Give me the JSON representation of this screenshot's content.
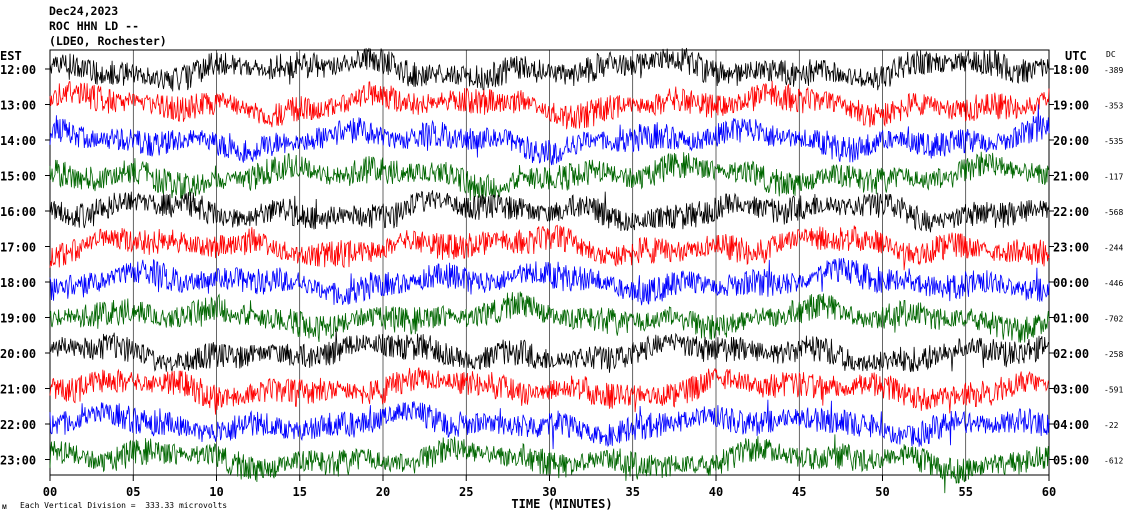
{
  "header": {
    "date": "Dec24,2023",
    "station": "ROC HHN LD --",
    "network": "(LDEO, Rochester)"
  },
  "left_zone_label": "EST",
  "right_zone_label": "UTC",
  "dc_label": "DC",
  "footer": {
    "xlabel": "TIME (MINUTES)",
    "scale_note": "Each Vertical Division =  333.33 microvolts",
    "mark": "ᴍ"
  },
  "colors": {
    "trace_cycle": [
      "#000000",
      "#ff0000",
      "#0000ff",
      "#006600"
    ],
    "grid": "#000000",
    "background": "#ffffff"
  },
  "chart_data": {
    "type": "line",
    "title": "",
    "xlabel": "TIME (MINUTES)",
    "ylabel": "",
    "xlim": [
      0,
      60
    ],
    "x_ticks": [
      "00",
      "05",
      "10",
      "15",
      "20",
      "25",
      "30",
      "35",
      "40",
      "45",
      "50",
      "55",
      "60"
    ],
    "grid": "vertical lines every 5 minutes",
    "rows": [
      {
        "est": "12:00",
        "utc": "18:00",
        "dc": "-389",
        "color": "#000000"
      },
      {
        "est": "13:00",
        "utc": "19:00",
        "dc": "-353",
        "color": "#ff0000"
      },
      {
        "est": "14:00",
        "utc": "20:00",
        "dc": "-535",
        "color": "#0000ff"
      },
      {
        "est": "15:00",
        "utc": "21:00",
        "dc": "-117",
        "color": "#006600"
      },
      {
        "est": "16:00",
        "utc": "22:00",
        "dc": "-568",
        "color": "#000000"
      },
      {
        "est": "17:00",
        "utc": "23:00",
        "dc": "-244",
        "color": "#ff0000"
      },
      {
        "est": "18:00",
        "utc": "00:00",
        "dc": "-446",
        "color": "#0000ff"
      },
      {
        "est": "19:00",
        "utc": "01:00",
        "dc": "-702",
        "color": "#006600"
      },
      {
        "est": "20:00",
        "utc": "02:00",
        "dc": "-258",
        "color": "#000000"
      },
      {
        "est": "21:00",
        "utc": "03:00",
        "dc": "-591",
        "color": "#ff0000"
      },
      {
        "est": "22:00",
        "utc": "04:00",
        "dc": "-22",
        "color": "#0000ff"
      },
      {
        "est": "23:00",
        "utc": "05:00",
        "dc": "-612",
        "color": "#006600"
      }
    ]
  }
}
